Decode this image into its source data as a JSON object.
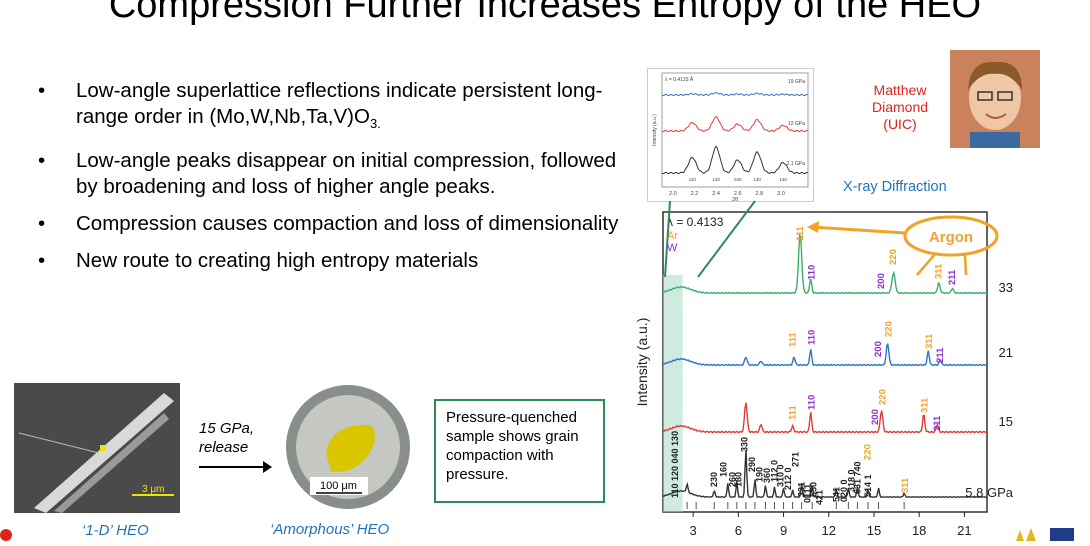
{
  "title": "Compression Further Increases Entropy of the HEO",
  "bullets": [
    {
      "text": "Low-angle superlattice reflections indicate persistent long-range order in (Mo,W,Nb,Ta,V)O",
      "sub": "3."
    },
    {
      "text": "Low-angle peaks disappear on initial compression, followed by broadening and loss of higher angle peaks.",
      "sub": ""
    },
    {
      "text": "Compression causes compaction and loss of dimensionality",
      "sub": ""
    },
    {
      "text": "New route to creating high entropy materials",
      "sub": ""
    }
  ],
  "images": {
    "left_scale": "3 μm",
    "right_scale": "100 μm",
    "arrow_line1": "15 GPa,",
    "arrow_line2": "release",
    "left_caption": "‘1-D’ HEO",
    "right_caption": "‘Amorphous’ HEO"
  },
  "note_box": "Pressure-quenched sample shows grain compaction with pressure.",
  "person": {
    "line1": "Matthew",
    "line2": "Diamond",
    "line3": "(UIC)"
  },
  "xrd_label": "X-ray Diffraction",
  "colors": {
    "green": "#3dae6a",
    "blue": "#2f74c8",
    "red": "#e23a3a",
    "black": "#333333",
    "orange": "#f0a22a",
    "purple": "#8a2ed4",
    "title_blue": "#1f74b8"
  },
  "chart_data": [
    {
      "type": "line",
      "title": "",
      "ylabel": "Intensity (a.u.)",
      "xlabel": "",
      "x_ticks": [
        "3",
        "6",
        "9",
        "12",
        "15",
        "18",
        "21"
      ],
      "xlim": [
        1,
        22.5
      ],
      "annotations": {
        "wavelength": "λ = 0.4133",
        "legend_ar": "Ar",
        "legend_w": "W",
        "argon_label": "Argon"
      },
      "series": [
        {
          "name": "33",
          "color": "#3dae6a"
        },
        {
          "name": "21",
          "color": "#2f74c8"
        },
        {
          "name": "15",
          "color": "#e23a3a"
        },
        {
          "name": "5.8 GPa",
          "color": "#333333"
        }
      ],
      "peak_labels": {
        "orange": [
          "111",
          "220",
          "311"
        ],
        "purple": [
          "110",
          "200",
          "211"
        ],
        "black": [
          "110 120 040 130",
          "230",
          "160",
          "260",
          "180",
          "330",
          "290",
          "190",
          "360",
          "112 0",
          "310 0",
          "212 0",
          "271",
          "331",
          "0111",
          "550",
          "421",
          "541",
          "020 0",
          "318 0",
          "631 740",
          "514 1"
        ]
      }
    },
    {
      "type": "line",
      "title": "",
      "xlabel": "2θ",
      "ylabel": "Intensity (a.u.)",
      "x_ticks": [
        "2.0",
        "2.2",
        "2.4",
        "2.6",
        "2.8",
        "3.0"
      ],
      "annotations": {
        "wavelength": "λ = 0.4133 Å"
      },
      "series": [
        {
          "name": "19 GPa",
          "color": "#2f74c8"
        },
        {
          "name": "12 GPa",
          "color": "#e23a3a"
        },
        {
          "name": "2.1 GPa",
          "color": "#333333"
        }
      ],
      "peak_labels": [
        "110",
        "120",
        "040",
        "130",
        "140"
      ]
    }
  ]
}
